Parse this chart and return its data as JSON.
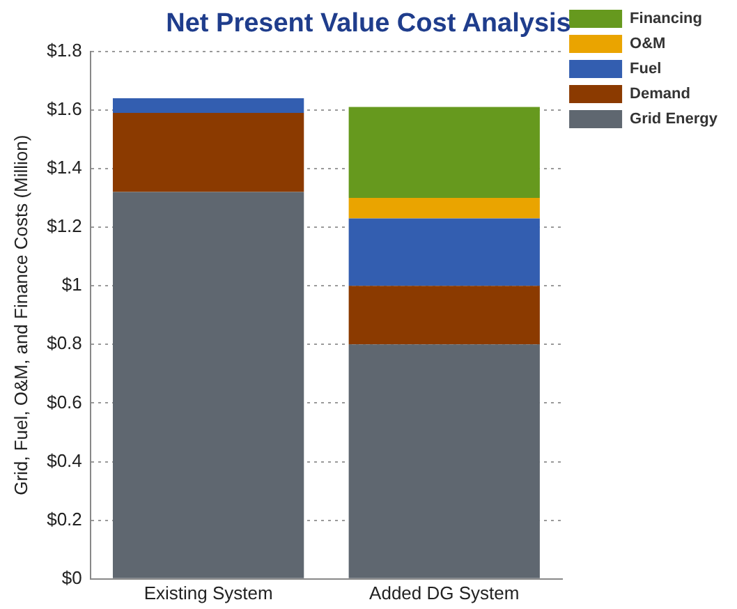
{
  "chart_data": {
    "type": "bar",
    "title": "Net Present Value Cost Analysis",
    "ylabel": "Grid, Fuel, O&M, and Finance Costs (Million)",
    "categories": [
      "Existing System",
      "Added DG System"
    ],
    "stacked": true,
    "series": [
      {
        "name": "Grid Energy",
        "color": "#5f6770",
        "values": [
          1.32,
          0.8
        ]
      },
      {
        "name": "Demand",
        "color": "#8b3a00",
        "values": [
          0.27,
          0.2
        ]
      },
      {
        "name": "Fuel",
        "color": "#335eb0",
        "values": [
          0.05,
          0.23
        ]
      },
      {
        "name": "O&M",
        "color": "#eaa400",
        "values": [
          0,
          0.07
        ]
      },
      {
        "name": "Financing",
        "color": "#66991e",
        "values": [
          0,
          0.31
        ]
      }
    ],
    "ylim": [
      0,
      1.8
    ],
    "yticks": [
      {
        "value": 0,
        "label": "$0"
      },
      {
        "value": 0.2,
        "label": "$0.2"
      },
      {
        "value": 0.4,
        "label": "$0.4"
      },
      {
        "value": 0.6,
        "label": "$0.6"
      },
      {
        "value": 0.8,
        "label": "$0.8"
      },
      {
        "value": 1,
        "label": "$1"
      },
      {
        "value": 1.2,
        "label": "$1.2"
      },
      {
        "value": 1.4,
        "label": "$1.4"
      },
      {
        "value": 1.6,
        "label": "$1.6"
      },
      {
        "value": 1.8,
        "label": "$1.8"
      }
    ],
    "grid": "y",
    "legend": "right"
  }
}
